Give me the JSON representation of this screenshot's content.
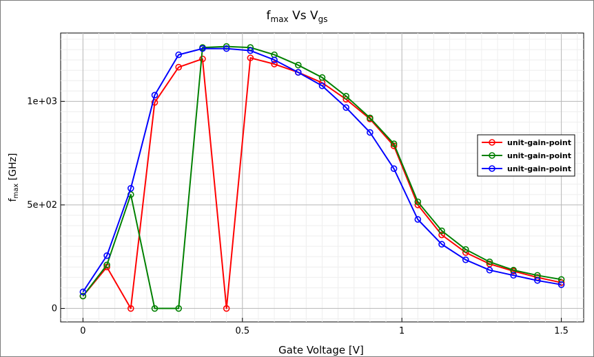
{
  "chart_data": {
    "type": "line",
    "title": {
      "main": "f",
      "sub1": "max",
      "mid": " Vs V",
      "sub2": "gs"
    },
    "xlabel": "Gate Voltage [V]",
    "ylabel": {
      "main": "f",
      "sub": "max",
      "rest": " [GHz]"
    },
    "xlim": [
      -0.07,
      1.57
    ],
    "ylim": [
      -65,
      1330
    ],
    "x_ticks": [
      {
        "value": 0,
        "label": "0"
      },
      {
        "value": 0.5,
        "label": "0.5"
      },
      {
        "value": 1,
        "label": "1"
      },
      {
        "value": 1.5,
        "label": "1.5"
      }
    ],
    "y_ticks": [
      {
        "value": 0,
        "label": "0"
      },
      {
        "value": 500,
        "label": "5e+02"
      },
      {
        "value": 1000,
        "label": "1e+03"
      }
    ],
    "grid": true,
    "legend_position": "right",
    "x": [
      0,
      0.075,
      0.15,
      0.225,
      0.3,
      0.375,
      0.45,
      0.525,
      0.6,
      0.675,
      0.75,
      0.825,
      0.9,
      0.975,
      1.05,
      1.125,
      1.2,
      1.275,
      1.35,
      1.425,
      1.5
    ],
    "series": [
      {
        "name": "unit-gain-point",
        "color": "#ff0000",
        "values": [
          60,
          200,
          0,
          995,
          1165,
          1205,
          0,
          1210,
          1180,
          1140,
          1090,
          1010,
          915,
          785,
          500,
          355,
          270,
          215,
          180,
          150,
          125
        ]
      },
      {
        "name": "unit-gain-point",
        "color": "#008000",
        "values": [
          60,
          210,
          550,
          0,
          0,
          1260,
          1265,
          1260,
          1225,
          1175,
          1115,
          1025,
          920,
          795,
          515,
          375,
          285,
          225,
          185,
          160,
          140
        ]
      },
      {
        "name": "unit-gain-point",
        "color": "#0000ff",
        "values": [
          80,
          255,
          580,
          1030,
          1225,
          1255,
          1255,
          1245,
          1200,
          1140,
          1075,
          970,
          850,
          675,
          430,
          310,
          235,
          185,
          160,
          135,
          115
        ]
      }
    ]
  }
}
